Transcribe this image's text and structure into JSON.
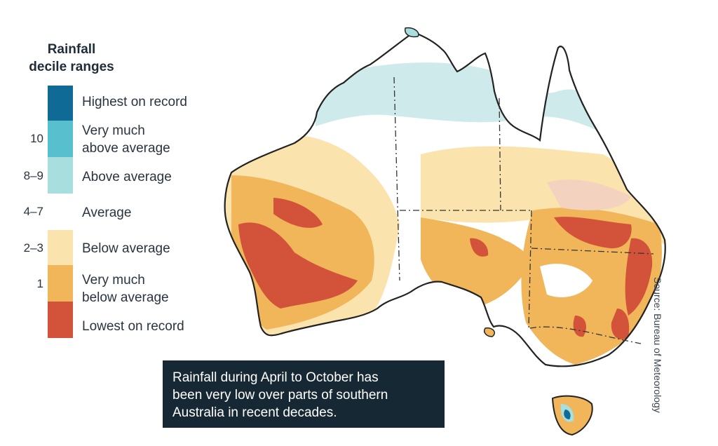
{
  "legend": {
    "title_line1": "Rainfall",
    "title_line2": "decile ranges",
    "items": [
      {
        "code": "",
        "label_line1": "Highest on record",
        "label_line2": "",
        "color": "#0f6a96"
      },
      {
        "code": "10",
        "label_line1": "Very much",
        "label_line2": "above average",
        "color": "#58bfcf"
      },
      {
        "code": "8–9",
        "label_line1": "Above average",
        "label_line2": "",
        "color": "#a8dedd"
      },
      {
        "code": "4–7",
        "label_line1": "Average",
        "label_line2": "",
        "color": "#ffffff"
      },
      {
        "code": "2–3",
        "label_line1": "Below average",
        "label_line2": "",
        "color": "#fbe3ad"
      },
      {
        "code": "1",
        "label_line1": "Very much",
        "label_line2": "below average",
        "color": "#f0b659"
      },
      {
        "code": "",
        "label_line1": "Lowest on record",
        "label_line2": "",
        "color": "#d2533a"
      }
    ]
  },
  "caption": {
    "line1": "Rainfall during April to October has",
    "line2": "been very low over parts of southern",
    "line3": "Australia in recent decades."
  },
  "source": "Source: Bureau of Meteorology",
  "colors": {
    "highest": "#0f6a96",
    "very_much_above": "#58bfcf",
    "above": "#a8dedd",
    "average": "#ffffff",
    "below": "#fbe3ad",
    "very_much_below": "#f0b659",
    "lowest": "#d2533a",
    "caption_bg": "#172835"
  }
}
